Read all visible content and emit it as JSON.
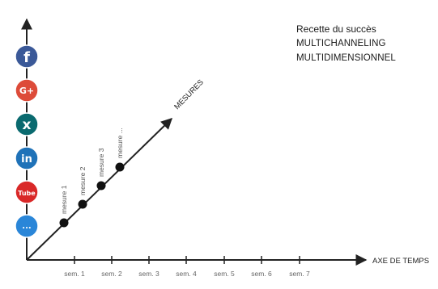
{
  "title": {
    "line1": "Recette du succès",
    "line2": "MULTICHANNELING",
    "line3": "MULTIDIMENSIONNEL"
  },
  "axes": {
    "time_label": "AXE DE TEMPS",
    "measures_label": "MESURES"
  },
  "weeks": [
    "sem. 1",
    "sem. 2",
    "sem. 3",
    "sem. 4",
    "sem. 5",
    "sem. 6",
    "sem. 7"
  ],
  "measures": [
    "mesure 1",
    "mesure 2",
    "mesure 3",
    "mesure ..."
  ],
  "channels": [
    {
      "icon": "facebook-icon",
      "glyph": "f",
      "color": "#3b5998"
    },
    {
      "icon": "google-plus-icon",
      "glyph": "G+",
      "color": "#dd4b39"
    },
    {
      "icon": "xing-icon",
      "glyph": "x",
      "color": "#0a6a6f"
    },
    {
      "icon": "linkedin-icon",
      "glyph": "in",
      "color": "#1f72b8"
    },
    {
      "icon": "youtube-icon",
      "glyph": "Tube",
      "color": "#d92828"
    },
    {
      "icon": "more-icon",
      "glyph": "...",
      "color": "#2a86d8"
    }
  ],
  "colors": {
    "axis": "#222222",
    "dot": "#111111"
  }
}
